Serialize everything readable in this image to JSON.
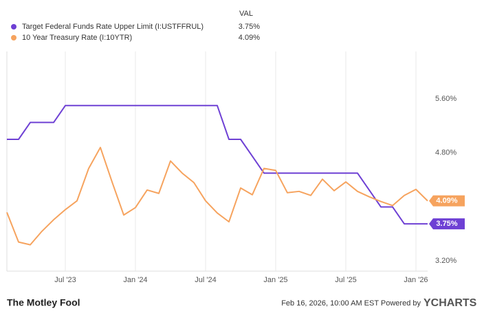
{
  "chart_data": {
    "type": "line",
    "value_header": "VAL",
    "x": [
      "2023-02",
      "2023-03",
      "2023-04",
      "2023-05",
      "2023-06",
      "2023-07",
      "2023-08",
      "2023-09",
      "2023-10",
      "2023-11",
      "2023-12",
      "2024-01",
      "2024-02",
      "2024-03",
      "2024-04",
      "2024-05",
      "2024-06",
      "2024-07",
      "2024-08",
      "2024-09",
      "2024-10",
      "2024-11",
      "2024-12",
      "2025-01",
      "2025-02",
      "2025-03",
      "2025-04",
      "2025-05",
      "2025-06",
      "2025-07",
      "2025-08",
      "2025-09",
      "2025-10",
      "2025-11",
      "2025-12",
      "2026-01",
      "2026-02"
    ],
    "series": [
      {
        "name": "Target Federal Funds Rate Upper Limit (I:USTFFRUL)",
        "color": "#6e40d4",
        "values": [
          5.0,
          5.0,
          5.25,
          5.25,
          5.25,
          5.5,
          5.5,
          5.5,
          5.5,
          5.5,
          5.5,
          5.5,
          5.5,
          5.5,
          5.5,
          5.5,
          5.5,
          5.5,
          5.5,
          5.0,
          5.0,
          4.75,
          4.5,
          4.5,
          4.5,
          4.5,
          4.5,
          4.5,
          4.5,
          4.5,
          4.5,
          4.25,
          4.0,
          4.0,
          3.75,
          3.75,
          3.75
        ],
        "value_labels": [
          null,
          null,
          null,
          null,
          null,
          null,
          null,
          null,
          null,
          null,
          null,
          null,
          null,
          null,
          null,
          null,
          null,
          null,
          null,
          null,
          null,
          null,
          null,
          null,
          null,
          null,
          null,
          null,
          null,
          null,
          null,
          null,
          null,
          null,
          null,
          null,
          "3.75%"
        ]
      },
      {
        "name": "10 Year Treasury Rate (I:10YTR)",
        "color": "#f6a35e",
        "values": [
          3.92,
          3.48,
          3.44,
          3.64,
          3.81,
          3.96,
          4.09,
          4.57,
          4.88,
          4.37,
          3.88,
          3.99,
          4.25,
          4.2,
          4.68,
          4.5,
          4.36,
          4.09,
          3.91,
          3.78,
          4.28,
          4.18,
          4.57,
          4.54,
          4.21,
          4.23,
          4.17,
          4.41,
          4.24,
          4.37,
          4.23,
          4.15,
          4.08,
          4.02,
          4.17,
          4.26,
          4.09
        ],
        "value_labels": [
          null,
          null,
          null,
          null,
          null,
          null,
          null,
          null,
          null,
          null,
          null,
          null,
          null,
          null,
          null,
          null,
          null,
          null,
          null,
          null,
          null,
          null,
          null,
          null,
          null,
          null,
          null,
          null,
          null,
          null,
          null,
          null,
          null,
          null,
          null,
          null,
          "4.09%"
        ]
      }
    ],
    "xlim": [
      "2023-02",
      "2026-02"
    ],
    "xticks": [
      {
        "value": "2023-07",
        "label": "Jul '23"
      },
      {
        "value": "2024-01",
        "label": "Jan '24"
      },
      {
        "value": "2024-07",
        "label": "Jul '24"
      },
      {
        "value": "2025-01",
        "label": "Jan '25"
      },
      {
        "value": "2025-07",
        "label": "Jul '25"
      },
      {
        "value": "2026-01",
        "label": "Jan '26"
      }
    ],
    "ylim": [
      3.05,
      6.3
    ],
    "yticks": [
      {
        "value": 3.2,
        "label": "3.20%"
      },
      {
        "value": 4.8,
        "label": "4.80%"
      },
      {
        "value": 5.6,
        "label": "5.60%"
      }
    ],
    "grid": true
  },
  "footer": {
    "brand": "The Motley Fool",
    "timestamp": "Feb 16, 2026, 10:00 AM EST Powered by",
    "logo": "YCHARTS"
  }
}
